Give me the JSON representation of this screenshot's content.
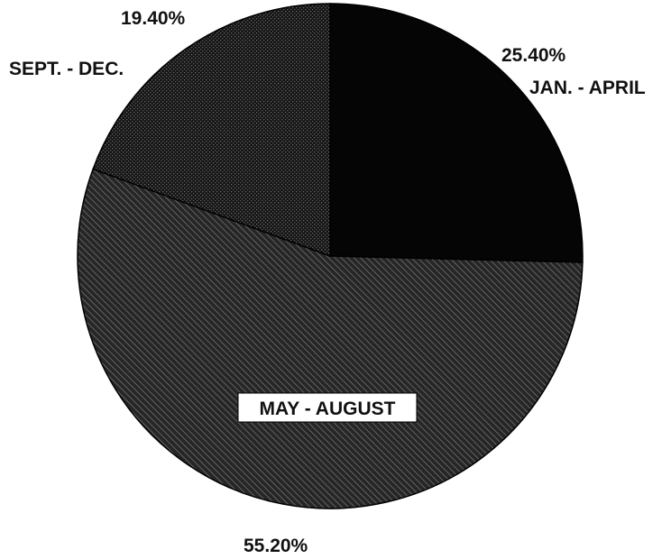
{
  "chart_data": {
    "type": "pie",
    "slices": [
      {
        "label": "JAN. - APRIL",
        "value": 25.4,
        "value_label": "25.40%",
        "color": "#050505",
        "fill": "solid"
      },
      {
        "label": "MAY - AUGUST",
        "value": 55.2,
        "value_label": "55.20%",
        "color": "#303030",
        "fill": "diagonal-hatch"
      },
      {
        "label": "SEPT. - DEC.",
        "value": 19.4,
        "value_label": "19.40%",
        "color": "#1c1c1c",
        "fill": "crosshatch"
      }
    ],
    "legend": "none"
  }
}
